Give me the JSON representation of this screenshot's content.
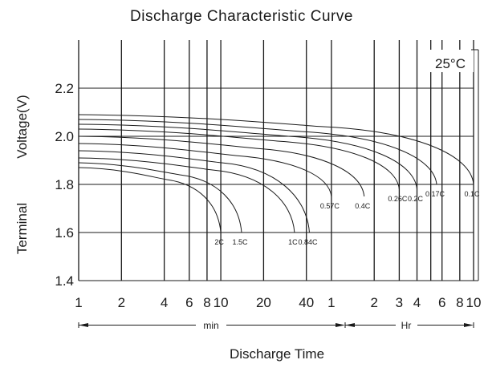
{
  "chart_data": {
    "type": "line",
    "title": "Discharge Characteristic Curve",
    "ylabel_left": "Terminal",
    "ylabel_right": "Voltage(V)",
    "xlabel": "Discharge  Time",
    "temperature": "25°C",
    "x_scale": "log",
    "grid": true,
    "ylim": [
      1.4,
      2.4
    ],
    "y_ticks": [
      1.4,
      1.6,
      1.8,
      2.0,
      2.2
    ],
    "y_tick_labels": [
      "1.4",
      "1.6",
      "1.8",
      "2.0",
      "2.2"
    ],
    "x_ticks_min": [
      1,
      2,
      4,
      6,
      8,
      10,
      20,
      40
    ],
    "x_tick_labels_min": [
      "1",
      "2",
      "4",
      "6",
      "8",
      "10",
      "20",
      "40"
    ],
    "x_ticks_hr": [
      1,
      2,
      3,
      4,
      6,
      8,
      10
    ],
    "x_tick_labels_hr": [
      "1",
      "2",
      "3",
      "4",
      "6",
      "8",
      "10"
    ],
    "x_units": {
      "minutes": "min",
      "hours": "Hr"
    },
    "series": [
      {
        "name": "2C",
        "start_voltage": 1.87,
        "end_voltage": 1.6,
        "end_time_min": 10
      },
      {
        "name": "1.5C",
        "start_voltage": 1.89,
        "end_voltage": 1.6,
        "end_time_min": 14
      },
      {
        "name": "1C",
        "start_voltage": 1.91,
        "end_voltage": 1.6,
        "end_time_min": 33
      },
      {
        "name": "0.84C",
        "start_voltage": 1.94,
        "end_voltage": 1.6,
        "end_time_min": 42
      },
      {
        "name": "0.57C",
        "start_voltage": 1.97,
        "end_voltage": 1.75,
        "end_time_min": 60
      },
      {
        "name": "0.4C",
        "start_voltage": 2.0,
        "end_voltage": 1.75,
        "end_time_min": 102
      },
      {
        "name": "0.26C",
        "start_voltage": 2.03,
        "end_voltage": 1.78,
        "end_time_min": 180
      },
      {
        "name": "0.2C",
        "start_voltage": 2.05,
        "end_voltage": 1.78,
        "end_time_min": 240
      },
      {
        "name": "0.17C",
        "start_voltage": 2.07,
        "end_voltage": 1.8,
        "end_time_min": 330
      },
      {
        "name": "0.1C",
        "start_voltage": 2.09,
        "end_voltage": 1.8,
        "end_time_min": 600
      }
    ]
  }
}
